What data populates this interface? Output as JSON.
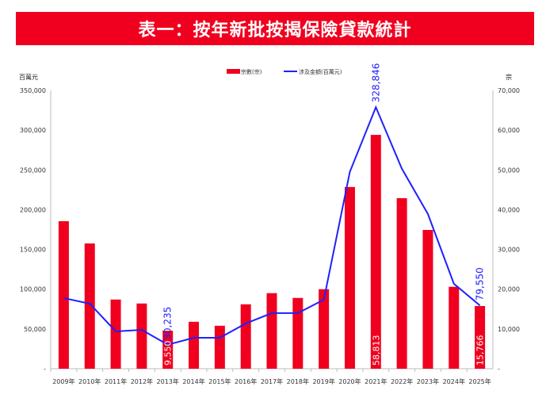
{
  "title": "表一：按年新批按揭保險貸款統計",
  "chart_data": {
    "type": "bar+line",
    "title": "表一：按年新批按揭保險貸款統計",
    "categories": [
      "2009年",
      "2010年",
      "2011年",
      "2012年",
      "2013年",
      "2014年",
      "2015年",
      "2016年",
      "2017年",
      "2018年",
      "2019年",
      "2020年",
      "2021年",
      "2022年",
      "2023年",
      "2024年",
      "2025年"
    ],
    "series": [
      {
        "name": "宗數(宗)",
        "type": "bar",
        "axis": "right",
        "color": "#f0001e",
        "values": [
          37100,
          31500,
          17400,
          16400,
          9550,
          11800,
          10800,
          16200,
          19000,
          17800,
          20000,
          45700,
          58813,
          42900,
          34900,
          20600,
          15766
        ]
      },
      {
        "name": "涉及金額(百萬元)",
        "type": "line",
        "axis": "left",
        "color": "#2020ff",
        "values": [
          88800,
          81800,
          46900,
          48900,
          30235,
          38900,
          38900,
          56900,
          69900,
          69900,
          86800,
          247500,
          328846,
          251500,
          194600,
          106800,
          79550
        ]
      }
    ],
    "data_labels": {
      "bar": [
        {
          "index": 4,
          "text": "9,550"
        },
        {
          "index": 12,
          "text": "58,813"
        },
        {
          "index": 16,
          "text": "15,766"
        }
      ],
      "line": [
        {
          "index": 4,
          "text": "30,235"
        },
        {
          "index": 12,
          "text": "328,846"
        },
        {
          "index": 16,
          "text": "79,550"
        }
      ]
    },
    "left_axis": {
      "label": "百萬元",
      "ylim": [
        0,
        350000
      ],
      "ticks": [
        "-",
        "50,000",
        "100,000",
        "150,000",
        "200,000",
        "250,000",
        "300,000",
        "350,000"
      ]
    },
    "right_axis": {
      "label": "宗",
      "ylim": [
        0,
        70000
      ],
      "ticks": [
        "-",
        "10,000",
        "20,000",
        "30,000",
        "40,000",
        "50,000",
        "60,000",
        "70,000"
      ]
    },
    "legend": "top-center"
  }
}
